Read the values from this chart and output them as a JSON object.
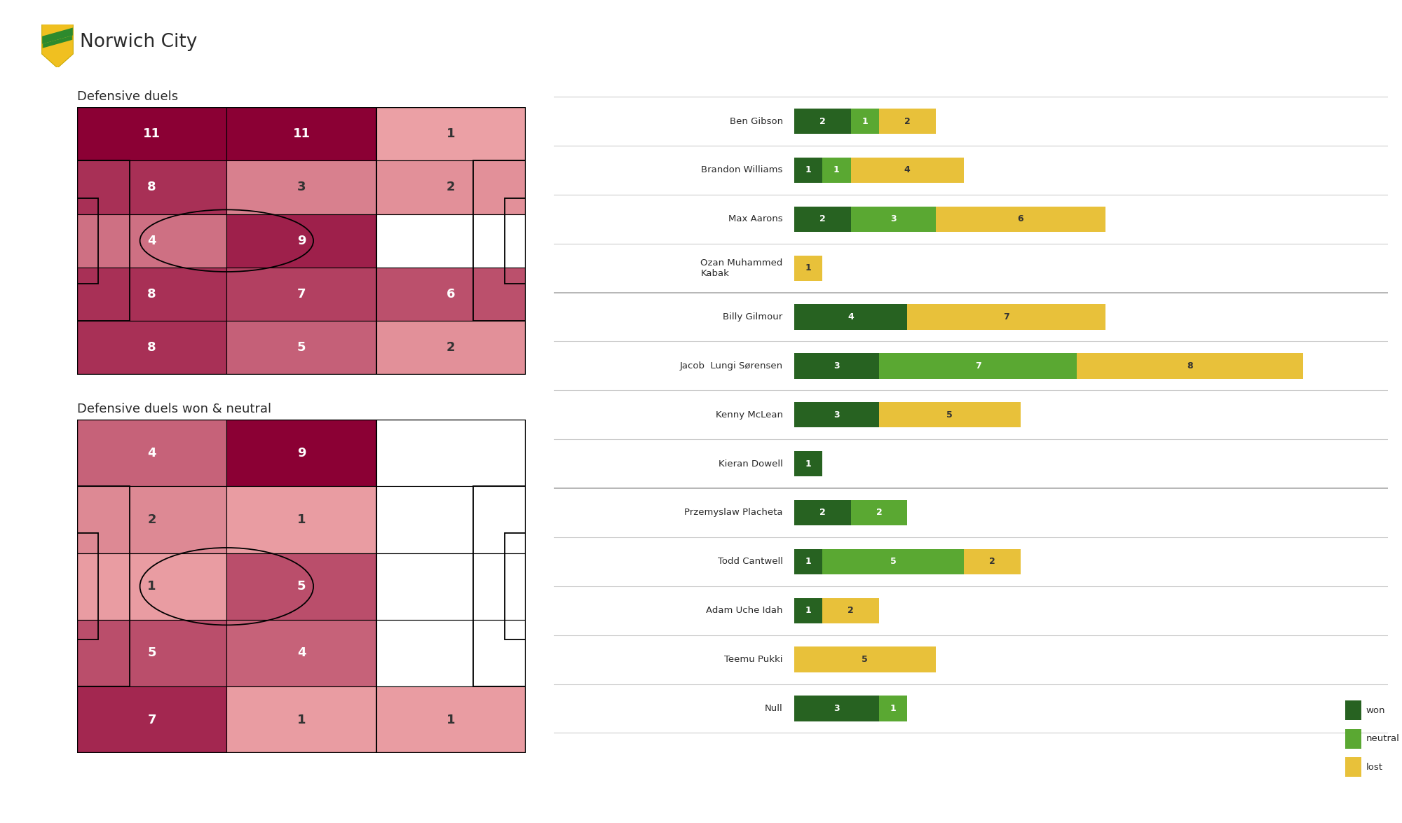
{
  "title": "Norwich City",
  "subtitle_heatmap1": "Defensive duels",
  "subtitle_heatmap2": "Defensive duels won & neutral",
  "heatmap1_grid": [
    [
      11,
      11,
      1
    ],
    [
      8,
      3,
      2
    ],
    [
      4,
      9,
      0
    ],
    [
      8,
      7,
      6
    ],
    [
      8,
      5,
      2
    ]
  ],
  "heatmap1_max": 11,
  "heatmap2_grid": [
    [
      4,
      9,
      0
    ],
    [
      2,
      1,
      0
    ],
    [
      1,
      5,
      0
    ],
    [
      5,
      4,
      0
    ],
    [
      7,
      1,
      1
    ]
  ],
  "heatmap2_max": 9,
  "players": [
    {
      "name": "Ben Gibson",
      "won": 2,
      "neutral": 1,
      "lost": 2
    },
    {
      "name": "Brandon Williams",
      "won": 1,
      "neutral": 1,
      "lost": 4
    },
    {
      "name": "Max Aarons",
      "won": 2,
      "neutral": 3,
      "lost": 6
    },
    {
      "name": "Ozan Muhammed\nKabak",
      "won": 0,
      "neutral": 0,
      "lost": 1
    },
    {
      "name": "Billy Gilmour",
      "won": 4,
      "neutral": 0,
      "lost": 7
    },
    {
      "name": "Jacob  Lungi Sørensen",
      "won": 3,
      "neutral": 7,
      "lost": 8
    },
    {
      "name": "Kenny McLean",
      "won": 3,
      "neutral": 0,
      "lost": 5
    },
    {
      "name": "Kieran Dowell",
      "won": 1,
      "neutral": 0,
      "lost": 0
    },
    {
      "name": "Przemyslaw Placheta",
      "won": 2,
      "neutral": 2,
      "lost": 0
    },
    {
      "name": "Todd Cantwell",
      "won": 1,
      "neutral": 5,
      "lost": 2
    },
    {
      "name": "Adam Uche Idah",
      "won": 1,
      "neutral": 0,
      "lost": 2
    },
    {
      "name": "Teemu Pukki",
      "won": 0,
      "neutral": 0,
      "lost": 5
    },
    {
      "name": "Null",
      "won": 3,
      "neutral": 1,
      "lost": 0
    }
  ],
  "dividers_after": [
    3,
    7
  ],
  "color_won": "#276221",
  "color_neutral": "#5aa832",
  "color_lost": "#e8c13a",
  "color_hm_high": "#8b0034",
  "color_hm_low": "#f5b0b0",
  "color_hm_zero": "#ffffff",
  "bg": "#ffffff",
  "text_color": "#2a2a2a",
  "legend_order": [
    "lost",
    "neutral",
    "won"
  ]
}
